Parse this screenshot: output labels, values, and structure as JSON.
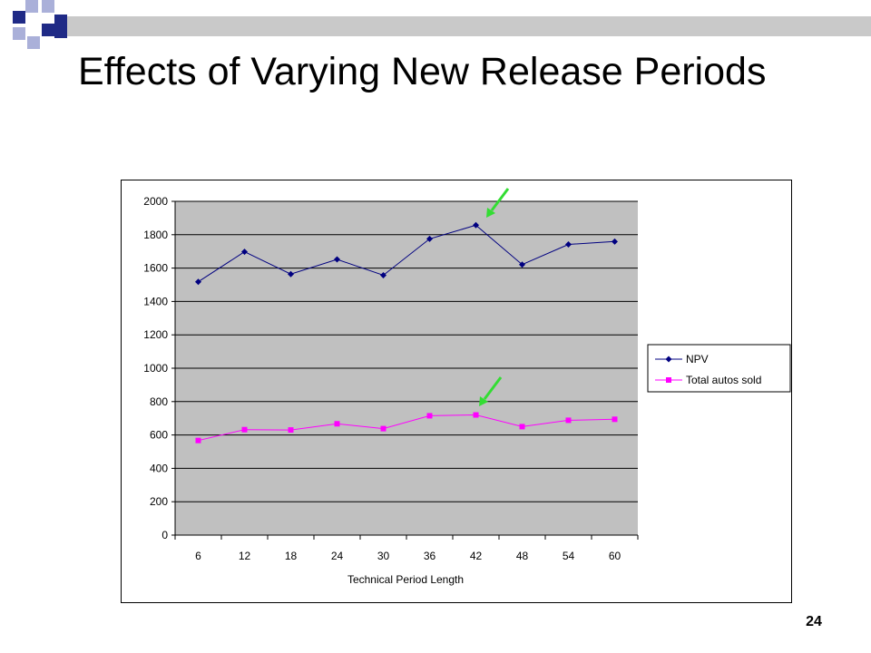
{
  "slide": {
    "title": "Effects of Varying New Release Periods",
    "page_number": "24"
  },
  "colors": {
    "deco_dark": "#1F2A86",
    "deco_light": "#AAB0D9",
    "deco_bar": "#B3B3B3",
    "plot_background": "#C0C0C0",
    "npv": "#000080",
    "autos": "#FF00FF",
    "arrow": "#33DD33"
  },
  "chart_data": {
    "type": "line",
    "title": "",
    "xlabel": "Technical Period Length",
    "ylabel": "",
    "categories": [
      "6",
      "12",
      "18",
      "24",
      "30",
      "36",
      "42",
      "48",
      "54",
      "60"
    ],
    "ylim": [
      0,
      2000
    ],
    "yticks": [
      "0",
      "200",
      "400",
      "600",
      "800",
      "1000",
      "1200",
      "1400",
      "1600",
      "1800",
      "2000"
    ],
    "grid": true,
    "legend_position": "right",
    "series": [
      {
        "name": "NPV",
        "marker": "diamond",
        "values": [
          1518,
          1698,
          1564,
          1652,
          1557,
          1775,
          1857,
          1621,
          1742,
          1759
        ]
      },
      {
        "name": "Total autos sold",
        "marker": "square",
        "values": [
          567,
          632,
          630,
          667,
          638,
          715,
          720,
          650,
          688,
          694
        ]
      }
    ],
    "annotations": [
      {
        "type": "arrow",
        "points_to": {
          "series": "NPV",
          "category": "42"
        }
      },
      {
        "type": "arrow",
        "points_to": {
          "series": "Total autos sold",
          "category": "42"
        }
      }
    ]
  }
}
